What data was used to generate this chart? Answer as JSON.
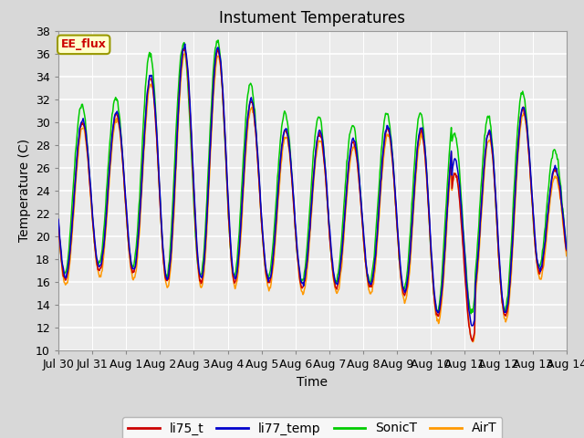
{
  "title": "Instument Temperatures",
  "xlabel": "Time",
  "ylabel": "Temperature (C)",
  "ylim": [
    10,
    38
  ],
  "yticks": [
    10,
    12,
    14,
    16,
    18,
    20,
    22,
    24,
    26,
    28,
    30,
    32,
    34,
    36,
    38
  ],
  "x_tick_labels": [
    "Jul 30",
    "Jul 31",
    "Aug 1",
    "Aug 2",
    "Aug 3",
    "Aug 4",
    "Aug 5",
    "Aug 6",
    "Aug 7",
    "Aug 8",
    "Aug 9",
    "Aug 10",
    "Aug 11",
    "Aug 12",
    "Aug 13",
    "Aug 14"
  ],
  "colors": {
    "li75_t": "#cc0000",
    "li77_temp": "#0000cc",
    "SonicT": "#00cc00",
    "AirT": "#ff9900"
  },
  "annotation_text": "EE_flux",
  "annotation_color": "#cc0000",
  "annotation_bg": "#ffffcc",
  "annotation_border": "#999900",
  "fig_bg": "#d8d8d8",
  "plot_bg": "#ebebeb",
  "title_fontsize": 12,
  "axis_fontsize": 10,
  "tick_fontsize": 9,
  "legend_fontsize": 10,
  "day_peak_heights": [
    30,
    30,
    31,
    35,
    37,
    36,
    30,
    29,
    29,
    28,
    30,
    29,
    29,
    29,
    32,
    23
  ],
  "day_trough_depths": [
    16,
    17,
    17,
    16,
    16,
    16,
    16,
    15.5,
    15.5,
    15.5,
    15.5,
    12.5,
    15,
    12,
    17,
    16
  ]
}
